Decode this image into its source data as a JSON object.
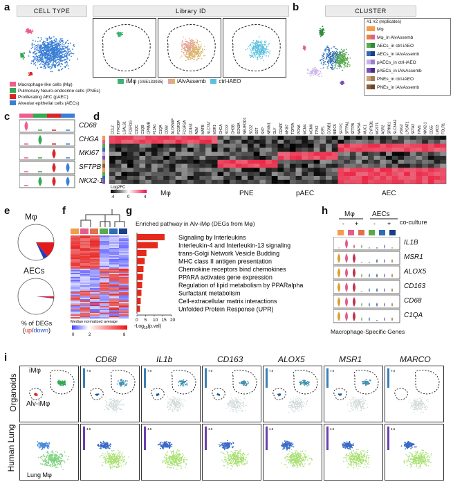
{
  "panel_a": {
    "letter": "a",
    "header_celltype": "CELL TYPE",
    "header_library": "Library ID",
    "legend": [
      {
        "label": "Macrophage-like cells (Mφ)",
        "color": "#ef5d8c"
      },
      {
        "label": "Pulmonary Neuro-endocrine cells (PNEs)",
        "color": "#34a853"
      },
      {
        "label": "Proliferating AEC (pAEC)",
        "color": "#d6262b"
      },
      {
        "label": "Alveolar epithelial cells (AECs)",
        "color": "#3a7fd5"
      }
    ],
    "library_legend": {
      "imp_label": "iMφ",
      "imp_note": "(GSE133935)",
      "ialv_label": "iAlvAssemb",
      "ctrl_label": "ctrl-iAEO",
      "imp_colors": [
        "#3cb371"
      ],
      "ialv_colors": [
        "#e8a0a0",
        "#d9b46a"
      ],
      "ctrl_colors": [
        "#5bc0de"
      ]
    }
  },
  "panel_b": {
    "letter": "b",
    "header": "CLUSTER",
    "legend_title": "#1 #2  (replicates)",
    "items": [
      {
        "label": "Mφ",
        "c1": "#f39c4a",
        "c2": "#f39c4a"
      },
      {
        "label": "Mφ_in AlvAssemb",
        "c1": "#e8833a",
        "c2": "#e35d8a"
      },
      {
        "label": "AECs_in ctrl-iAEO",
        "c1": "#5aaa4a",
        "c2": "#2f8a3c"
      },
      {
        "label": "AECs_in iAlvAssemb",
        "c1": "#2f6db5",
        "c2": "#1a3f8a"
      },
      {
        "label": "pAECs_in ctrl-iAEO",
        "c1": "#c9b0e8",
        "c2": "#9f7fd0"
      },
      {
        "label": "pAECs_in iAlvAssemb",
        "c1": "#7a52b5",
        "c2": "#4c2e8a"
      },
      {
        "label": "PNEs_in ctrl-iAEO",
        "c1": "#c8a27a",
        "c2": "#a57d55"
      },
      {
        "label": "PNEs_in iAlvAssemb",
        "c1": "#8a5e3a",
        "c2": "#6b4424"
      }
    ]
  },
  "panel_c": {
    "letter": "c",
    "genes": [
      "CD68",
      "CHGA",
      "MKI67",
      "SFTPB",
      "NKX2-1"
    ]
  },
  "panel_d": {
    "letter": "d",
    "genes": [
      "CCL2",
      "TYROBP",
      "LGALS1",
      "FCER1G",
      "C1QC",
      "C1QB",
      "CPNMB",
      "F13A1",
      "C1QA",
      "CD68",
      "ALOX5AP",
      "FCGR2A",
      "FCGR3A",
      "CD163",
      "A2M",
      "MAFB",
      "SLC7A7",
      "MSR1",
      "CHGA",
      "SCG3",
      "CHGB",
      "SCN3A",
      "NEUROD1",
      "SCG2",
      "SST",
      "SYP",
      "NRXN1",
      "GLY",
      "CENPF",
      "MKI67",
      "TOP2A",
      "PCNA",
      "MCM4",
      "MCM6",
      "TPX2",
      "E2F1",
      "CCNB1",
      "BIRC5",
      "SFTPC",
      "SFTPA1",
      "SFTPB",
      "NAPSA",
      "MUC1",
      "CYP1B1",
      "MGST1",
      "AGR2",
      "SPINK1",
      "SLC34A2",
      "VSIG2",
      "LPCAT1",
      "SFTA2",
      "TPM1",
      "NKX2-1",
      "CD55",
      "LMO3",
      "FOLR1"
    ],
    "colorbar_title": "Log2FC",
    "colorbar_ticks": [
      "-4",
      "0",
      "4"
    ],
    "groups": [
      "Mφ",
      "PNE",
      "pAEC",
      "AEC"
    ]
  },
  "panel_e": {
    "letter": "e",
    "pies": [
      {
        "title": "Mφ",
        "up_fraction": 0.14,
        "down_fraction": 0.04
      },
      {
        "title": "AECs",
        "up_fraction": 0.015,
        "down_fraction": 0.005
      }
    ],
    "caption_main": "% of DEGs",
    "caption_up": "up",
    "caption_sep": "/",
    "caption_down": "down"
  },
  "panel_f": {
    "letter": "f",
    "colorbar_title": "Median normalized average",
    "ticks": [
      "0",
      "2",
      "8"
    ]
  },
  "panel_g": {
    "letter": "g",
    "title": "Enriched pathway in Alv-iMφ (DEGs from Mφ)",
    "xlabel_pre": "-Log",
    "xlabel_sub": "10",
    "xlabel_post": "(p.val)",
    "xticks": [
      "0",
      "5",
      "10",
      "15",
      "20"
    ],
    "chart_data": {
      "type": "bar",
      "orientation": "horizontal",
      "categories": [
        "Signaling by Interleukins",
        "Interleukin-4 and Interleukin-13 signaling",
        "trans-Golgi Network Vesicle Budding",
        "MHC class II antigen presentation",
        "Chemokine receptors bind chemokines",
        "PPARA activates gene expression",
        "Regulation of lipid metabolism by PPARalpha",
        "Surfactant metabolism",
        "Cell-extracellular matrix interactions",
        "Unfolded Protein Response (UPR)"
      ],
      "values": [
        16,
        12,
        5.5,
        4.5,
        3.8,
        3.4,
        3.0,
        2.6,
        2.2,
        1.8
      ],
      "xlim": [
        0,
        20
      ],
      "color": "#e32a1c"
    }
  },
  "panel_h": {
    "letter": "h",
    "groups": [
      "Mφ",
      "AECs"
    ],
    "signs": [
      "-",
      "+",
      "-",
      "+"
    ],
    "coculture_label": "co-culture",
    "genes": [
      "IL1B",
      "MSR1",
      "ALOX5",
      "CD163",
      "CD68",
      "C1QA"
    ],
    "caption": "Macrophage-Specific Genes"
  },
  "panel_i": {
    "letter": "i",
    "row_labels": [
      "Organoids",
      "Human Lung"
    ],
    "genes": [
      "CD68",
      "IL1b",
      "CD163",
      "ALOX5",
      "MSR1",
      "MARCO"
    ],
    "imp_label": "iMφ",
    "alv_label": "Alv-iMφ",
    "lung_label": "Lung Mφ",
    "organoid_scale_max": "7.0",
    "lung_scale_max": "4.5"
  }
}
